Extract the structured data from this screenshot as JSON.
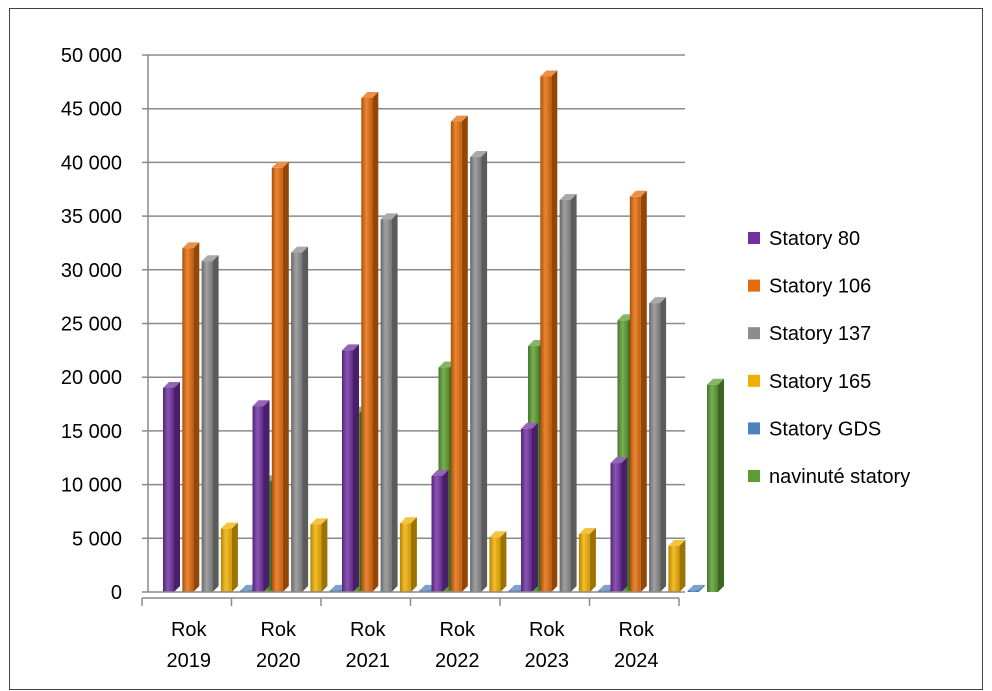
{
  "chart_data": {
    "type": "bar",
    "title": "",
    "xlabel": "",
    "ylabel": "",
    "ylim": [
      0,
      50000
    ],
    "yticks": [
      "0",
      "5 000",
      "10 000",
      "15 000",
      "20 000",
      "25 000",
      "30 000",
      "35 000",
      "40 000",
      "45 000",
      "50 000"
    ],
    "categories": [
      [
        "Rok",
        "2019"
      ],
      [
        "Rok",
        "2020"
      ],
      [
        "Rok",
        "2021"
      ],
      [
        "Rok",
        "2022"
      ],
      [
        "Rok",
        "2023"
      ],
      [
        "Rok",
        "2024"
      ]
    ],
    "grid": true,
    "legend_position": "right",
    "series": [
      {
        "name": "Statory 80",
        "color": "#7030a0",
        "values": [
          19000,
          17300,
          22500,
          10800,
          15200,
          12000
        ]
      },
      {
        "name": "Statory 106",
        "color": "#e46c0a",
        "values": [
          32000,
          39500,
          46000,
          43800,
          48000,
          36800
        ]
      },
      {
        "name": "Statory 137",
        "color": "#8c8c8c",
        "values": [
          30800,
          31600,
          34700,
          40500,
          36500,
          26900
        ]
      },
      {
        "name": "Statory 165",
        "color": "#f0b000",
        "values": [
          5900,
          6300,
          6400,
          5100,
          5400,
          4300
        ]
      },
      {
        "name": "Statory GDS",
        "color": "#4f81bd",
        "values": [
          100,
          100,
          100,
          100,
          100,
          100
        ]
      },
      {
        "name": "navinuté statory",
        "color": "#5c9e31",
        "values": [
          10300,
          16700,
          20900,
          22900,
          25300,
          19300
        ]
      }
    ]
  }
}
